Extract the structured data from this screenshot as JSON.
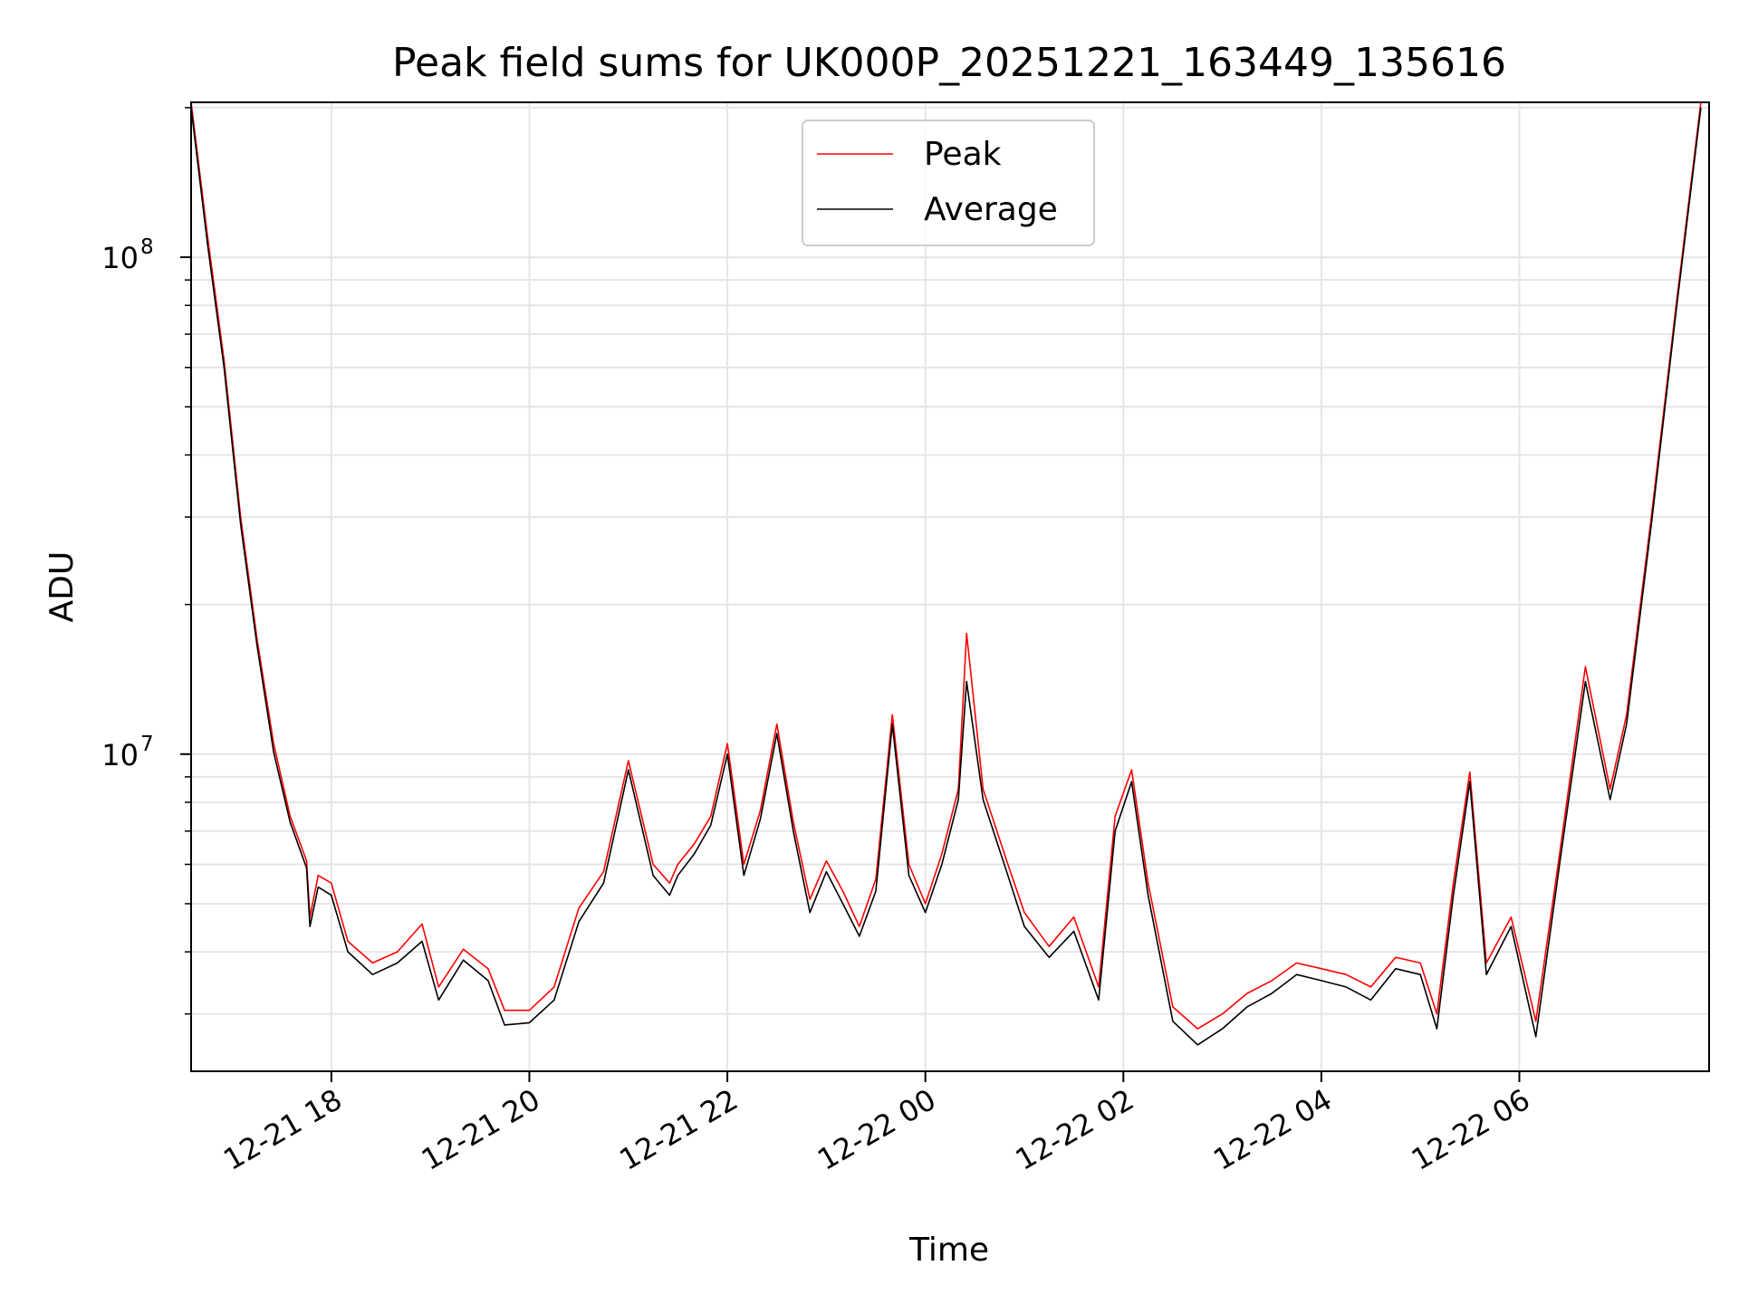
{
  "chart_data": {
    "type": "line",
    "title": "Peak field sums for UK000P_20251221_163449_135616",
    "xlabel": "Time",
    "ylabel": "ADU",
    "x_scale": "time",
    "y_scale": "log",
    "xlim": [
      "2025-12-21 16:35",
      "2025-12-22 07:55"
    ],
    "ylim": [
      2300000,
      205000000
    ],
    "xticks": [
      {
        "value": "2025-12-21 18:00",
        "label": "12-21 18"
      },
      {
        "value": "2025-12-21 20:00",
        "label": "12-21 20"
      },
      {
        "value": "2025-12-21 22:00",
        "label": "12-21 22"
      },
      {
        "value": "2025-12-22 00:00",
        "label": "12-22 00"
      },
      {
        "value": "2025-12-22 02:00",
        "label": "12-22 02"
      },
      {
        "value": "2025-12-22 04:00",
        "label": "12-22 04"
      },
      {
        "value": "2025-12-22 06:00",
        "label": "12-22 06"
      }
    ],
    "yticks_major": [
      {
        "value": 10000000,
        "label_base": "10",
        "label_exp": "7"
      },
      {
        "value": 100000000,
        "label_base": "10",
        "label_exp": "8"
      }
    ],
    "yticks_minor": [
      3000000,
      4000000,
      5000000,
      6000000,
      7000000,
      8000000,
      9000000,
      20000000,
      30000000,
      40000000,
      50000000,
      60000000,
      70000000,
      80000000,
      90000000,
      200000000
    ],
    "grid": true,
    "legend_position": "upper-center",
    "series": [
      {
        "name": "Peak",
        "color": "#ff0000",
        "points": [
          [
            "2025-12-21 16:35",
            205000000
          ],
          [
            "2025-12-21 16:45",
            110000000
          ],
          [
            "2025-12-21 16:55",
            62000000
          ],
          [
            "2025-12-21 17:05",
            30000000
          ],
          [
            "2025-12-21 17:15",
            17000000
          ],
          [
            "2025-12-21 17:25",
            10500000
          ],
          [
            "2025-12-21 17:35",
            7500000
          ],
          [
            "2025-12-21 17:45",
            6100000
          ],
          [
            "2025-12-21 17:47",
            4700000
          ],
          [
            "2025-12-21 17:52",
            5700000
          ],
          [
            "2025-12-21 18:00",
            5500000
          ],
          [
            "2025-12-21 18:10",
            4200000
          ],
          [
            "2025-12-21 18:25",
            3800000
          ],
          [
            "2025-12-21 18:40",
            4000000
          ],
          [
            "2025-12-21 18:55",
            4550000
          ],
          [
            "2025-12-21 19:05",
            3400000
          ],
          [
            "2025-12-21 19:20",
            4050000
          ],
          [
            "2025-12-21 19:35",
            3700000
          ],
          [
            "2025-12-21 19:45",
            3050000
          ],
          [
            "2025-12-21 20:00",
            3050000
          ],
          [
            "2025-12-21 20:15",
            3400000
          ],
          [
            "2025-12-21 20:30",
            4900000
          ],
          [
            "2025-12-21 20:45",
            5800000
          ],
          [
            "2025-12-21 21:00",
            9700000
          ],
          [
            "2025-12-21 21:15",
            6000000
          ],
          [
            "2025-12-21 21:25",
            5500000
          ],
          [
            "2025-12-21 21:30",
            6000000
          ],
          [
            "2025-12-21 21:40",
            6600000
          ],
          [
            "2025-12-21 21:50",
            7500000
          ],
          [
            "2025-12-21 22:00",
            10500000
          ],
          [
            "2025-12-21 22:10",
            6000000
          ],
          [
            "2025-12-21 22:20",
            7700000
          ],
          [
            "2025-12-21 22:30",
            11500000
          ],
          [
            "2025-12-21 22:40",
            7300000
          ],
          [
            "2025-12-21 22:50",
            5100000
          ],
          [
            "2025-12-21 23:00",
            6100000
          ],
          [
            "2025-12-21 23:10",
            5300000
          ],
          [
            "2025-12-21 23:20",
            4500000
          ],
          [
            "2025-12-21 23:30",
            5600000
          ],
          [
            "2025-12-21 23:40",
            12000000
          ],
          [
            "2025-12-21 23:50",
            6000000
          ],
          [
            "2025-12-22 00:00",
            5000000
          ],
          [
            "2025-12-22 00:10",
            6300000
          ],
          [
            "2025-12-22 00:20",
            8500000
          ],
          [
            "2025-12-22 00:25",
            17500000
          ],
          [
            "2025-12-22 00:35",
            8500000
          ],
          [
            "2025-12-22 00:50",
            6000000
          ],
          [
            "2025-12-22 01:00",
            4800000
          ],
          [
            "2025-12-22 01:15",
            4100000
          ],
          [
            "2025-12-22 01:30",
            4700000
          ],
          [
            "2025-12-22 01:45",
            3400000
          ],
          [
            "2025-12-22 01:55",
            7500000
          ],
          [
            "2025-12-22 02:05",
            9300000
          ],
          [
            "2025-12-22 02:15",
            5500000
          ],
          [
            "2025-12-22 02:30",
            3100000
          ],
          [
            "2025-12-22 02:45",
            2800000
          ],
          [
            "2025-12-22 03:00",
            3000000
          ],
          [
            "2025-12-22 03:15",
            3300000
          ],
          [
            "2025-12-22 03:30",
            3500000
          ],
          [
            "2025-12-22 03:45",
            3800000
          ],
          [
            "2025-12-22 04:00",
            3700000
          ],
          [
            "2025-12-22 04:15",
            3600000
          ],
          [
            "2025-12-22 04:30",
            3400000
          ],
          [
            "2025-12-22 04:45",
            3900000
          ],
          [
            "2025-12-22 05:00",
            3800000
          ],
          [
            "2025-12-22 05:10",
            3000000
          ],
          [
            "2025-12-22 05:20",
            5500000
          ],
          [
            "2025-12-22 05:30",
            9200000
          ],
          [
            "2025-12-22 05:40",
            3800000
          ],
          [
            "2025-12-22 05:55",
            4700000
          ],
          [
            "2025-12-22 06:10",
            2900000
          ],
          [
            "2025-12-22 06:25",
            6500000
          ],
          [
            "2025-12-22 06:40",
            15000000
          ],
          [
            "2025-12-22 06:55",
            8500000
          ],
          [
            "2025-12-22 07:05",
            12000000
          ],
          [
            "2025-12-22 07:20",
            30000000
          ],
          [
            "2025-12-22 07:35",
            80000000
          ],
          [
            "2025-12-22 07:50",
            205000000
          ]
        ]
      },
      {
        "name": "Average",
        "color": "#000000",
        "points": [
          [
            "2025-12-21 16:35",
            200000000
          ],
          [
            "2025-12-21 16:45",
            106000000
          ],
          [
            "2025-12-21 16:55",
            60000000
          ],
          [
            "2025-12-21 17:05",
            29000000
          ],
          [
            "2025-12-21 17:15",
            16500000
          ],
          [
            "2025-12-21 17:25",
            10100000
          ],
          [
            "2025-12-21 17:35",
            7300000
          ],
          [
            "2025-12-21 17:45",
            5900000
          ],
          [
            "2025-12-21 17:47",
            4500000
          ],
          [
            "2025-12-21 17:52",
            5400000
          ],
          [
            "2025-12-21 18:00",
            5200000
          ],
          [
            "2025-12-21 18:10",
            4000000
          ],
          [
            "2025-12-21 18:25",
            3600000
          ],
          [
            "2025-12-21 18:40",
            3800000
          ],
          [
            "2025-12-21 18:55",
            4200000
          ],
          [
            "2025-12-21 19:05",
            3200000
          ],
          [
            "2025-12-21 19:20",
            3850000
          ],
          [
            "2025-12-21 19:35",
            3500000
          ],
          [
            "2025-12-21 19:45",
            2850000
          ],
          [
            "2025-12-21 20:00",
            2880000
          ],
          [
            "2025-12-21 20:15",
            3200000
          ],
          [
            "2025-12-21 20:30",
            4600000
          ],
          [
            "2025-12-21 20:45",
            5500000
          ],
          [
            "2025-12-21 21:00",
            9300000
          ],
          [
            "2025-12-21 21:15",
            5700000
          ],
          [
            "2025-12-21 21:25",
            5200000
          ],
          [
            "2025-12-21 21:30",
            5700000
          ],
          [
            "2025-12-21 21:40",
            6300000
          ],
          [
            "2025-12-21 21:50",
            7200000
          ],
          [
            "2025-12-21 22:00",
            10000000
          ],
          [
            "2025-12-21 22:10",
            5700000
          ],
          [
            "2025-12-21 22:20",
            7400000
          ],
          [
            "2025-12-21 22:30",
            11000000
          ],
          [
            "2025-12-21 22:40",
            7000000
          ],
          [
            "2025-12-21 22:50",
            4800000
          ],
          [
            "2025-12-21 23:00",
            5800000
          ],
          [
            "2025-12-21 23:10",
            5000000
          ],
          [
            "2025-12-21 23:20",
            4300000
          ],
          [
            "2025-12-21 23:30",
            5300000
          ],
          [
            "2025-12-21 23:40",
            11500000
          ],
          [
            "2025-12-21 23:50",
            5700000
          ],
          [
            "2025-12-22 00:00",
            4800000
          ],
          [
            "2025-12-22 00:10",
            6000000
          ],
          [
            "2025-12-22 00:20",
            8100000
          ],
          [
            "2025-12-22 00:25",
            14000000
          ],
          [
            "2025-12-22 00:35",
            8100000
          ],
          [
            "2025-12-22 00:50",
            5700000
          ],
          [
            "2025-12-22 01:00",
            4500000
          ],
          [
            "2025-12-22 01:15",
            3900000
          ],
          [
            "2025-12-22 01:30",
            4400000
          ],
          [
            "2025-12-22 01:45",
            3200000
          ],
          [
            "2025-12-22 01:55",
            7000000
          ],
          [
            "2025-12-22 02:05",
            8800000
          ],
          [
            "2025-12-22 02:15",
            5200000
          ],
          [
            "2025-12-22 02:30",
            2900000
          ],
          [
            "2025-12-22 02:45",
            2600000
          ],
          [
            "2025-12-22 03:00",
            2800000
          ],
          [
            "2025-12-22 03:15",
            3100000
          ],
          [
            "2025-12-22 03:30",
            3300000
          ],
          [
            "2025-12-22 03:45",
            3600000
          ],
          [
            "2025-12-22 04:00",
            3500000
          ],
          [
            "2025-12-22 04:15",
            3400000
          ],
          [
            "2025-12-22 04:30",
            3200000
          ],
          [
            "2025-12-22 04:45",
            3700000
          ],
          [
            "2025-12-22 05:00",
            3600000
          ],
          [
            "2025-12-22 05:10",
            2800000
          ],
          [
            "2025-12-22 05:20",
            5200000
          ],
          [
            "2025-12-22 05:30",
            8800000
          ],
          [
            "2025-12-22 05:40",
            3600000
          ],
          [
            "2025-12-22 05:55",
            4500000
          ],
          [
            "2025-12-22 06:10",
            2700000
          ],
          [
            "2025-12-22 06:25",
            6200000
          ],
          [
            "2025-12-22 06:40",
            14000000
          ],
          [
            "2025-12-22 06:55",
            8100000
          ],
          [
            "2025-12-22 07:05",
            11500000
          ],
          [
            "2025-12-22 07:20",
            29000000
          ],
          [
            "2025-12-22 07:35",
            78000000
          ],
          [
            "2025-12-22 07:50",
            200000000
          ]
        ]
      }
    ]
  }
}
